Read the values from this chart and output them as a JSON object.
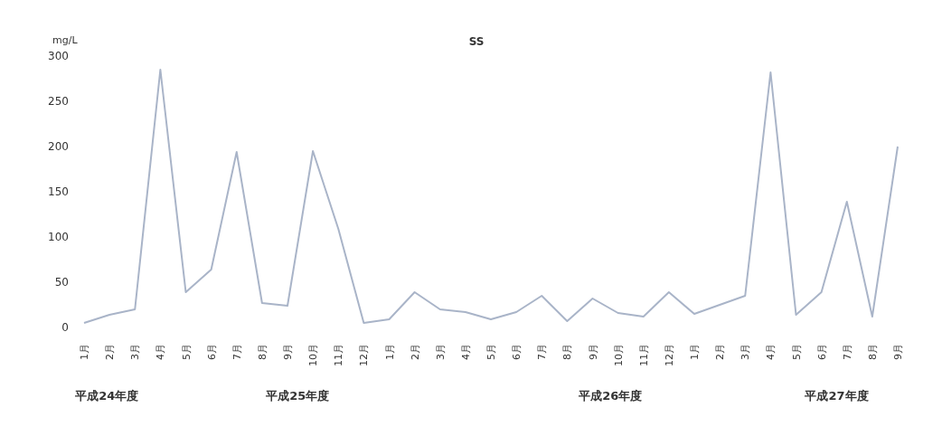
{
  "chart_data": {
    "type": "line",
    "title": "SS",
    "ylabel": "mg/L",
    "categories": [
      "1月",
      "2月",
      "3月",
      "4月",
      "5月",
      "6月",
      "7月",
      "8月",
      "9月",
      "10月",
      "11月",
      "12月",
      "1月",
      "2月",
      "3月",
      "4月",
      "5月",
      "6月",
      "7月",
      "8月",
      "9月",
      "10月",
      "11月",
      "12月",
      "1月",
      "2月",
      "3月",
      "4月",
      "5月",
      "6月",
      "7月",
      "8月",
      "9月"
    ],
    "series": [
      {
        "color": "#a9b4c8",
        "values": [
          5,
          14,
          20,
          285,
          39,
          64,
          194,
          27,
          24,
          195,
          109,
          5,
          9,
          39,
          20,
          17,
          9,
          17,
          35,
          7,
          32,
          16,
          12,
          39,
          15,
          25,
          35,
          282,
          14,
          39,
          139,
          12,
          200
        ]
      }
    ],
    "ylim": [
      0,
      300
    ],
    "yticks": [
      0,
      50,
      100,
      150,
      200,
      250,
      300
    ],
    "grid": false,
    "marker": "none",
    "line_style": "solid",
    "annotations": [
      "平成24年度",
      "平成25年度",
      "平成26年度",
      "平成27年度"
    ]
  }
}
